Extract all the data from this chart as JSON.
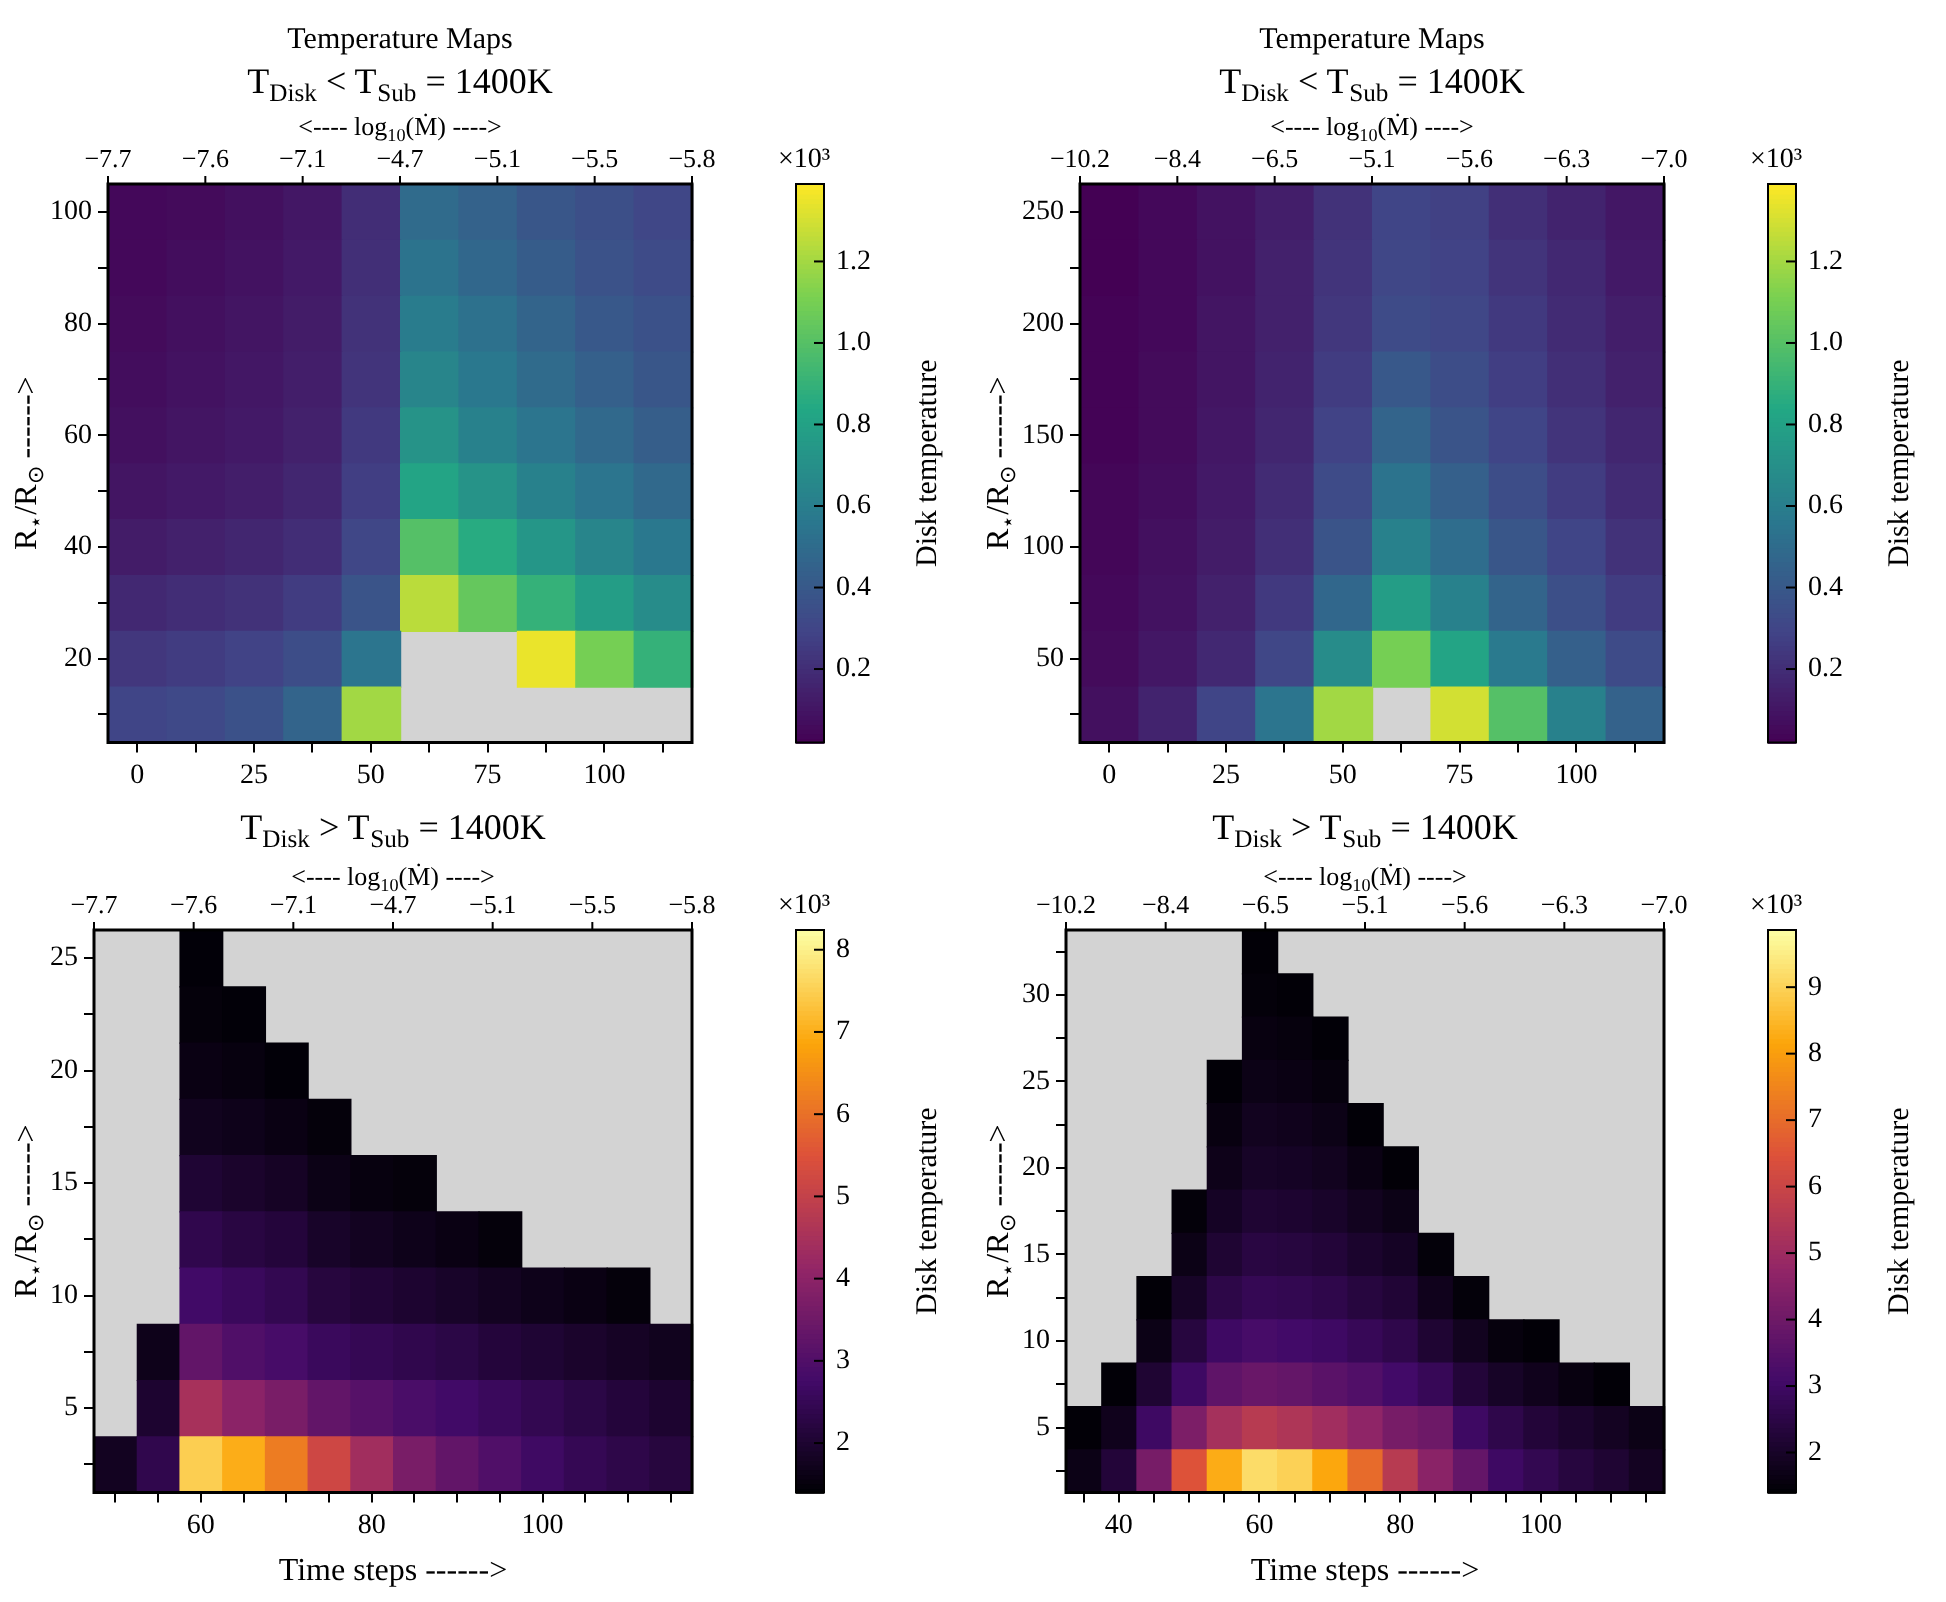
{
  "chart_data": [
    {
      "type": "heatmap",
      "title": "Temperature Maps",
      "subtitle": "T$_{Disk}$ < T$_{Sub}$ = 1400K",
      "x2label": "<---- log$_{10}$(Ṁ) ---->",
      "ylabel": "R$_{⋆}$/R$_{⊙}$ ------>",
      "clabel": "Disk temperature",
      "clim": [
        0.02,
        1.39
      ],
      "cticks": [
        0.2,
        0.4,
        0.6,
        0.8,
        {
          "value": 1,
          "label": "1.0"
        },
        1.2
      ],
      "colors": [
        "#440154",
        "#414487",
        "#2a788e",
        "#22a884",
        "#7ad151",
        "#fde725"
      ],
      "categories": [
        "0",
        null,
        "25",
        null,
        "50",
        null,
        "75",
        null,
        "100",
        null
      ],
      "y_categories": [
        "100",
        null,
        "80",
        null,
        "60",
        null,
        "40",
        null,
        "20",
        null
      ],
      "cells": [
        [
          0.05,
          0.06,
          0.08,
          0.11,
          0.2,
          0.5,
          0.45,
          0.39,
          0.35,
          0.31
        ],
        [
          0.05,
          0.07,
          0.09,
          0.12,
          0.21,
          0.54,
          0.48,
          0.42,
          0.37,
          0.33
        ],
        [
          0.06,
          0.08,
          0.1,
          0.13,
          0.22,
          0.59,
          0.53,
          0.46,
          0.4,
          0.36
        ],
        [
          0.07,
          0.09,
          0.11,
          0.14,
          0.23,
          0.64,
          0.57,
          0.5,
          0.44,
          0.39
        ],
        [
          0.08,
          0.1,
          0.12,
          0.15,
          0.25,
          0.72,
          0.62,
          0.55,
          0.49,
          0.43
        ],
        [
          0.1,
          0.12,
          0.14,
          0.17,
          0.27,
          0.82,
          0.72,
          0.62,
          0.55,
          0.49
        ],
        [
          0.13,
          0.15,
          0.17,
          0.2,
          0.31,
          1.0,
          0.86,
          0.74,
          0.64,
          0.57
        ],
        [
          0.18,
          0.2,
          0.22,
          0.26,
          0.38,
          1.25,
          1.05,
          0.9,
          0.78,
          0.68
        ],
        [
          0.24,
          0.26,
          0.29,
          0.34,
          0.55,
          null,
          null,
          1.35,
          1.1,
          0.9
        ],
        [
          0.3,
          0.32,
          0.36,
          0.46,
          1.2,
          null,
          null,
          null,
          null,
          null
        ]
      ],
      "annotations": [
        "−7.7",
        "−7.6",
        "−7.1",
        "−4.7",
        "−5.1",
        "−5.5",
        "−5.8",
        "×10³"
      ]
    },
    {
      "type": "heatmap",
      "title": "Temperature Maps",
      "subtitle": "T$_{Disk}$ < T$_{Sub}$ = 1400K",
      "x2label": "<---- log$_{10}$(Ṁ) ---->",
      "ylabel": "R$_{⋆}$/R$_{⊙}$ ------>",
      "clabel": "Disk temperature",
      "clim": [
        0.02,
        1.39
      ],
      "cticks": [
        0.2,
        0.4,
        0.6,
        0.8,
        {
          "value": 1,
          "label": "1.0"
        },
        1.2
      ],
      "colors": [
        "#440154",
        "#414487",
        "#2a788e",
        "#22a884",
        "#7ad151",
        "#fde725"
      ],
      "categories": [
        "0",
        null,
        "25",
        null,
        "50",
        null,
        "75",
        null,
        "100",
        null
      ],
      "y_categories": [
        "250",
        null,
        "200",
        null,
        "150",
        null,
        "100",
        null,
        "50",
        null
      ],
      "cells": [
        [
          0.02,
          0.05,
          0.09,
          0.14,
          0.22,
          0.3,
          0.28,
          0.21,
          0.16,
          0.11
        ],
        [
          0.02,
          0.05,
          0.09,
          0.15,
          0.23,
          0.31,
          0.29,
          0.23,
          0.18,
          0.12
        ],
        [
          0.03,
          0.05,
          0.1,
          0.15,
          0.24,
          0.33,
          0.31,
          0.25,
          0.19,
          0.14
        ],
        [
          0.03,
          0.06,
          0.1,
          0.16,
          0.26,
          0.4,
          0.34,
          0.27,
          0.21,
          0.15
        ],
        [
          0.03,
          0.06,
          0.11,
          0.17,
          0.29,
          0.46,
          0.38,
          0.3,
          0.23,
          0.17
        ],
        [
          0.04,
          0.07,
          0.12,
          0.19,
          0.33,
          0.54,
          0.44,
          0.34,
          0.26,
          0.19
        ],
        [
          0.04,
          0.08,
          0.13,
          0.21,
          0.38,
          0.62,
          0.51,
          0.39,
          0.3,
          0.22
        ],
        [
          0.05,
          0.09,
          0.15,
          0.25,
          0.48,
          0.78,
          0.62,
          0.46,
          0.35,
          0.26
        ],
        [
          0.06,
          0.11,
          0.18,
          0.31,
          0.68,
          1.1,
          0.82,
          0.58,
          0.44,
          0.33
        ],
        [
          0.08,
          0.16,
          0.3,
          0.55,
          1.2,
          null,
          1.3,
          1.0,
          0.62,
          0.45
        ]
      ],
      "annotations": [
        "−10.2",
        "−8.4",
        "−6.5",
        "−5.1",
        "−5.6",
        "−6.3",
        "−7.0",
        "×10³"
      ]
    },
    {
      "type": "heatmap",
      "title": "T$_{Disk}$ > T$_{Sub}$ = 1400K",
      "x2label": "<---- log$_{10}$(Ṁ) ---->",
      "xlabel": "Time steps ------>",
      "ylabel": "R$_{⋆}$/R$_{⊙}$ ------>",
      "clabel": "Disk temperature",
      "clim": [
        1.4,
        8.24
      ],
      "cticks": [
        2,
        3,
        4,
        5,
        6,
        7,
        8
      ],
      "colors": [
        "#000004",
        "#420a68",
        "#932667",
        "#dd513a",
        "#fca50a",
        "#fcffa4"
      ],
      "categories": [
        null,
        null,
        "60",
        null,
        null,
        null,
        "80",
        null,
        null,
        null,
        "100",
        null,
        null,
        null
      ],
      "y_categories": [
        "25",
        null,
        "20",
        null,
        "15",
        null,
        "10",
        null,
        "5",
        null
      ],
      "cells": [
        [
          null,
          null,
          1.45,
          null,
          null,
          null,
          null,
          null,
          null,
          null,
          null,
          null,
          null,
          null
        ],
        [
          null,
          null,
          1.5,
          1.45,
          null,
          null,
          null,
          null,
          null,
          null,
          null,
          null,
          null,
          null
        ],
        [
          null,
          null,
          1.6,
          1.55,
          1.45,
          null,
          null,
          null,
          null,
          null,
          null,
          null,
          null,
          null
        ],
        [
          null,
          null,
          1.75,
          1.7,
          1.6,
          1.5,
          null,
          null,
          null,
          null,
          null,
          null,
          null,
          null
        ],
        [
          null,
          null,
          2.05,
          1.95,
          1.85,
          1.65,
          1.55,
          1.5,
          null,
          null,
          null,
          null,
          null,
          null
        ],
        [
          null,
          null,
          2.4,
          2.25,
          2.15,
          1.9,
          1.8,
          1.7,
          1.6,
          1.5,
          null,
          null,
          null,
          null
        ],
        [
          null,
          null,
          2.75,
          2.6,
          2.45,
          2.2,
          2.1,
          2.0,
          1.9,
          1.8,
          1.7,
          1.6,
          1.5,
          null
        ],
        [
          null,
          1.7,
          3.3,
          3.0,
          2.85,
          2.6,
          2.5,
          2.4,
          2.3,
          2.15,
          2.05,
          1.95,
          1.85,
          1.75
        ],
        [
          null,
          2.0,
          4.5,
          4.0,
          3.7,
          3.3,
          3.1,
          2.9,
          2.75,
          2.6,
          2.45,
          2.3,
          2.15,
          2.0
        ],
        [
          1.8,
          2.4,
          7.5,
          7.0,
          6.2,
          5.2,
          4.4,
          3.7,
          3.3,
          3.0,
          2.7,
          2.5,
          2.35,
          2.2
        ]
      ],
      "annotations": [
        "−7.7",
        "−7.6",
        "−7.1",
        "−4.7",
        "−5.1",
        "−5.5",
        "−5.8",
        "×10³"
      ]
    },
    {
      "type": "heatmap",
      "title": "T$_{Disk}$ > T$_{Sub}$ = 1400K",
      "x2label": "<---- log$_{10}$(Ṁ) ---->",
      "xlabel": "Time steps ------>",
      "ylabel": "R$_{⋆}$/R$_{⊙}$ ------>",
      "clabel": "Disk temperature",
      "clim": [
        1.4,
        9.86
      ],
      "cticks": [
        2,
        3,
        4,
        5,
        6,
        7,
        8,
        9
      ],
      "colors": [
        "#000004",
        "#420a68",
        "#932667",
        "#dd513a",
        "#fca50a",
        "#fcffa4"
      ],
      "categories": [
        null,
        "40",
        null,
        null,
        null,
        "60",
        null,
        null,
        null,
        "80",
        null,
        null,
        null,
        "100",
        null,
        null,
        null
      ],
      "y_categories": [
        null,
        "30",
        null,
        "25",
        null,
        "20",
        null,
        "15",
        null,
        "10",
        null,
        "5",
        null
      ],
      "cells": [
        [
          null,
          null,
          null,
          null,
          null,
          1.45,
          null,
          null,
          null,
          null,
          null,
          null,
          null,
          null,
          null,
          null,
          null
        ],
        [
          null,
          null,
          null,
          null,
          null,
          1.5,
          1.45,
          null,
          null,
          null,
          null,
          null,
          null,
          null,
          null,
          null,
          null
        ],
        [
          null,
          null,
          null,
          null,
          null,
          1.6,
          1.55,
          1.45,
          null,
          null,
          null,
          null,
          null,
          null,
          null,
          null,
          null
        ],
        [
          null,
          null,
          null,
          null,
          1.45,
          1.7,
          1.65,
          1.55,
          null,
          null,
          null,
          null,
          null,
          null,
          null,
          null,
          null
        ],
        [
          null,
          null,
          null,
          null,
          1.6,
          1.85,
          1.8,
          1.7,
          1.45,
          null,
          null,
          null,
          null,
          null,
          null,
          null,
          null
        ],
        [
          null,
          null,
          null,
          null,
          1.75,
          2.0,
          1.95,
          1.85,
          1.65,
          1.45,
          null,
          null,
          null,
          null,
          null,
          null,
          null
        ],
        [
          null,
          null,
          null,
          1.5,
          1.95,
          2.2,
          2.15,
          2.05,
          1.85,
          1.7,
          null,
          null,
          null,
          null,
          null,
          null,
          null
        ],
        [
          null,
          null,
          null,
          1.7,
          2.2,
          2.45,
          2.4,
          2.3,
          2.1,
          1.95,
          1.5,
          null,
          null,
          null,
          null,
          null,
          null
        ],
        [
          null,
          null,
          1.45,
          2.0,
          2.55,
          2.75,
          2.7,
          2.6,
          2.4,
          2.25,
          1.8,
          1.5,
          null,
          null,
          null,
          null,
          null
        ],
        [
          null,
          null,
          1.7,
          2.4,
          3.0,
          3.2,
          3.1,
          3.0,
          2.8,
          2.6,
          2.2,
          1.85,
          1.55,
          1.45,
          null,
          null,
          null
        ],
        [
          null,
          1.45,
          2.2,
          3.0,
          3.7,
          3.9,
          3.8,
          3.6,
          3.4,
          3.1,
          2.8,
          2.3,
          2.0,
          1.8,
          1.6,
          1.45,
          null
        ],
        [
          1.45,
          1.8,
          3.0,
          4.3,
          5.2,
          5.6,
          5.4,
          5.1,
          4.7,
          4.2,
          4.0,
          3.0,
          2.6,
          2.3,
          2.1,
          1.9,
          1.7
        ],
        [
          1.7,
          2.3,
          4.2,
          6.5,
          8.3,
          9.2,
          9.0,
          8.2,
          7.0,
          5.6,
          4.6,
          3.8,
          3.0,
          2.7,
          2.4,
          2.2,
          1.9
        ]
      ],
      "annotations": [
        "−10.2",
        "−8.4",
        "−6.5",
        "−5.1",
        "−5.6",
        "−6.3",
        "−7.0",
        "×10³"
      ]
    }
  ]
}
